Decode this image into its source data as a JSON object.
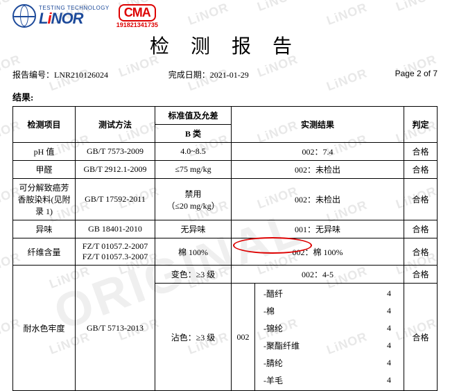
{
  "logo": {
    "topline": "TESTING TECHNOLOGY",
    "brand_parts": [
      "L",
      "i",
      "NOR"
    ],
    "cma_text": "CMA",
    "cma_number": "191821341735"
  },
  "title": "检 测 报 告",
  "meta": {
    "report_no_label": "报告编号：",
    "report_no": "LNR210126024",
    "date_label": "完成日期：",
    "date": "2021-01-29",
    "page": "Page 2 of 7"
  },
  "results_label": "结果:",
  "headers": {
    "item": "检测项目",
    "method": "测试方法",
    "standard_top": "标准值及允差",
    "standard_sub": "B 类",
    "actual": "实测结果",
    "judge": "判定"
  },
  "rows": [
    {
      "item": "pH 值",
      "method": "GB/T 7573-2009",
      "standard": "4.0~8.5",
      "actual": "002：7.4",
      "judge": "合格"
    },
    {
      "item": "甲醛",
      "method": "GB/T 2912.1-2009",
      "standard": "≤75 mg/kg",
      "actual": "002：未检出",
      "judge": "合格"
    },
    {
      "item": "可分解致癌芳香胺染料(见附录 1)",
      "method": "GB/T 17592-2011",
      "standard": "禁用\n（≤20 mg/kg）",
      "actual": "002：未检出",
      "judge": "合格"
    },
    {
      "item": "异味",
      "method": "GB 18401-2010",
      "standard": "无异味",
      "actual": "001：无异味",
      "judge": "合格"
    },
    {
      "item": "纤维含量",
      "method": "FZ/T 01057.2-2007\nFZ/T 01057.3-2007",
      "standard": "棉 100%",
      "actual": "002：棉 100%",
      "judge": "合格",
      "circled": true
    }
  ],
  "fastness": {
    "item": "耐水色牢度",
    "method": "GB/T 5713-2013",
    "change_std": "变色：≥3 级",
    "change_actual": "002：4-5",
    "change_judge": "合格",
    "stain_std": "沾色：≥3 级",
    "stain_code": "002",
    "stain_judge": "合格",
    "stain_items": [
      {
        "name": "-醋纤",
        "val": "4"
      },
      {
        "name": "-棉",
        "val": "4"
      },
      {
        "name": "-锦纶",
        "val": "4"
      },
      {
        "name": "-聚酯纤维",
        "val": "4"
      },
      {
        "name": "-腈纶",
        "val": "4"
      },
      {
        "name": "-羊毛",
        "val": "4"
      }
    ]
  },
  "watermark_text": "LiNOR",
  "watermark_big": "ORIGINAL",
  "colors": {
    "brand_blue": "#1d4a9a",
    "brand_red": "#d00",
    "wm_gray": "#e8e8e8"
  }
}
